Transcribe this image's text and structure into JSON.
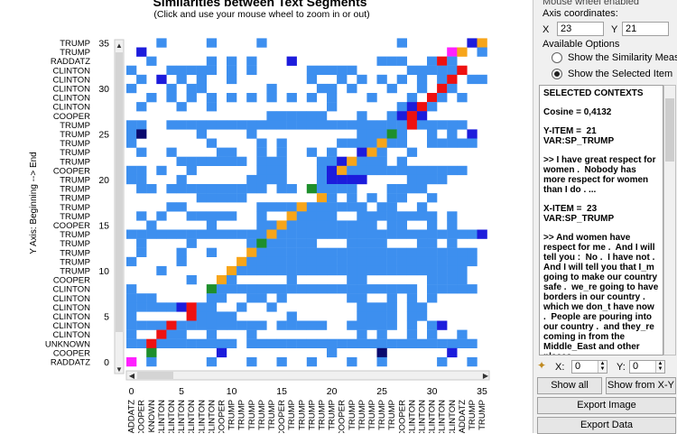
{
  "chart": {
    "title": "Similarities between Text Segments",
    "subtitle": "(Click and use your mouse wheel to zoom in or out)",
    "ylabel": "Y Axis: Beginning --> End"
  },
  "panel": {
    "top_text": "Mouse wheel enabled",
    "axis_coordinates_label": "Axis coordinates:",
    "x_label": "X",
    "x_value": "23",
    "y_label": "Y",
    "y_value": "21",
    "options_label": "Available Options",
    "option1": "Show the Similarity Measures",
    "option2": "Show the Selected Item",
    "selected_option": "Show the Selected Item",
    "contexts": [
      "SELECTED CONTEXTS",
      "Cosine = 0,4132",
      "Y-ITEM =  21\nVAR:SP_TRUMP",
      ">> I have great respect for women .  Nobody has more respect for women than I do . ...",
      "X-ITEM =  23\nVAR:SP_TRUMP",
      ">> And women have respect for me .  And I will tell you :  No .  I have not .  And I will tell you that I_m going to make our country safe .  we_re going to have borders in our country .  which we don_t have now .  People are pouring into our country .  and they_re coming in from the Middle_East and other places . ..."
    ],
    "spin_x_label": "X:",
    "spin_x_value": "0",
    "spin_y_label": "Y:",
    "spin_y_value": "0",
    "show_all": "Show all",
    "show_from_xy": "Show from X-Y",
    "export_image": "Export Image",
    "export_data": "Export Data"
  },
  "colors": {
    "white": "#ffffff",
    "light_blue": "#3d8fef",
    "blue": "#1c1cdc",
    "dark_blue": "#0a0a6e",
    "red": "#ee1111",
    "orange": "#f7a51a",
    "green": "#1e8f2c",
    "magenta": "#ff20ff",
    "tan": "#c8a07a"
  },
  "chart_data": {
    "type": "heatmap",
    "title": "Similarities between Text Segments",
    "subtitle": "(Click and use your mouse wheel to zoom in or out)",
    "ylabel": "Y Axis: Beginning --> End",
    "xlim": [
      0,
      35
    ],
    "ylim": [
      0,
      35
    ],
    "xticks": [
      0,
      5,
      10,
      15,
      20,
      25,
      30,
      35
    ],
    "yticks": [
      0,
      5,
      10,
      15,
      20,
      25,
      30,
      35
    ],
    "row_labels": [
      "RADDATZ",
      "COOPER",
      "UNKNOWN",
      "CLINTON",
      "CLINTON",
      "CLINTON",
      "CLINTON",
      "CLINTON",
      "CLINTON",
      "COOPER",
      "TRUMP",
      "TRUMP",
      "TRUMP",
      "TRUMP",
      "TRUMP",
      "COOPER",
      "TRUMP",
      "TRUMP",
      "TRUMP",
      "TRUMP",
      "TRUMP",
      "COOPER",
      "TRUMP",
      "TRUMP",
      "TRUMP",
      "TRUMP",
      "TRUMP",
      "COOPER",
      "CLINTON",
      "CLINTON",
      "CLINTON",
      "CLINTON",
      "CLINTON",
      "RADDATZ",
      "TRUMP",
      "TRUMP"
    ],
    "col_labels": [
      "RADDATZ",
      "COOPER",
      "UNKNOWN",
      "CLINTON",
      "CLINTON",
      "CLINTON",
      "CLINTON",
      "CLINTON",
      "CLINTON",
      "COOPER",
      "TRUMP",
      "TRUMP",
      "TRUMP",
      "TRUMP",
      "TRUMP",
      "COOPER",
      "TRUMP",
      "TRUMP",
      "TRUMP",
      "TRUMP",
      "TRUMP",
      "COOPER",
      "TRUMP",
      "TRUMP",
      "TRUMP",
      "TRUMP",
      "TRUMP",
      "COOPER",
      "CLINTON",
      "CLINTON",
      "CLINTON",
      "CLINTON",
      "CLINTON",
      "RADDATZ",
      "TRUMP",
      "TRUMP"
    ],
    "palette": {
      "L": "#3d8fef",
      "B": "#1c1cdc",
      "D": "#0a0a6e",
      "R": "#ee1111",
      "O": "#f7a51a",
      "G": "#1e8f2c",
      "M": "#ff20ff",
      "T": "#c8a07a"
    },
    "grid_rows_top_to_bottom": [
      "...L....L....L.............L......BO",
      ".B..............................MO.L",
      "..L.....L.L.L...B........LLL..LRL..",
      "L...LLLLL.L.L.....LLLLL.....LLLLLR.",
      ".L.B.L.L..L.......L..L.L.L.L.L.LR.LL",
      "L...L.LL......L....LL.L...L..L.RL..",
      "..L.L.L.L.L.L.L.L.L.L...L...L.RL.L",
      ".L...L..L...........L......LBRL...",
      "..............LLLLLL...L..LBRB.....",
      "LL..LLLLLLLLLLLLLLLLLLLLLLLLRLLLLL",
      "LD.....L....L..........LLLGL..L.L.B",
      "L.......L....L.L.....LLLLOLL..LLLLL",
      ".L..L....LL..L.L..L.L..BOL..L.....",
      ".....LLLLLLL.LLL...LLBOLLL.L......",
      "LL.L..L......LLL...LBOLLLLLLLLLLLL",
      "LL...L......LLLL...LBBBB....LLLL..",
      ".LL.LLLLLLLLLL.LL.GLLLL...LLLL.....",
      ".......LLLLL.......OL.L.L.LL..L...",
      "....LL.......LLLLOLLLLLL.LL..L.....",
      ".L.L..LLLLL..L..OLLLL..LLLLLLLL.L..",
      "..L.....L....LLOLLLLLLLLL.LL..L.L.",
      "LLLLLLLLLLLLLLOLLLLLLLLLLLLLLLLLLLLB",
      ".L....L.....LGLLLLL...LLLL...LL.L..",
      ".L...L..L...OLLLLLLLLLLLLLLLLLLLLLL",
      "L....L.....OLLLLLLLLLLLLLLLLLLLLLLL",
      "...L......OLLLLLLLLLLLLLLLLLLLLLLL.",
      "......L..OL.....L.....LL......LLLL",
      "L.......GLLLLLLLLLLLLLLLLLLLL.LLLLL",
      "LLL.....LL..LL.L......LL..L.L.L...",
      "LLLLLBRLL..L..L........LLLL.LL...",
      "L.....RLLLL.....L......LLLL.LL....",
      "LLLLRLLLLLLLLL.LLLLL..LLLLL.L.LB..",
      "L..RLL..L...L..........L.L..L.L..L",
      "LLRLLLLLLLL.LLLLLLLLLLLLLLLLLLLLLLL",
      "..G......B..........L....D......B.",
      "M.L.....L...L..L..L...L..L.....L..L"
    ],
    "selected_cell": {
      "x": 23,
      "y": 21,
      "cosine": "0,4132"
    }
  }
}
